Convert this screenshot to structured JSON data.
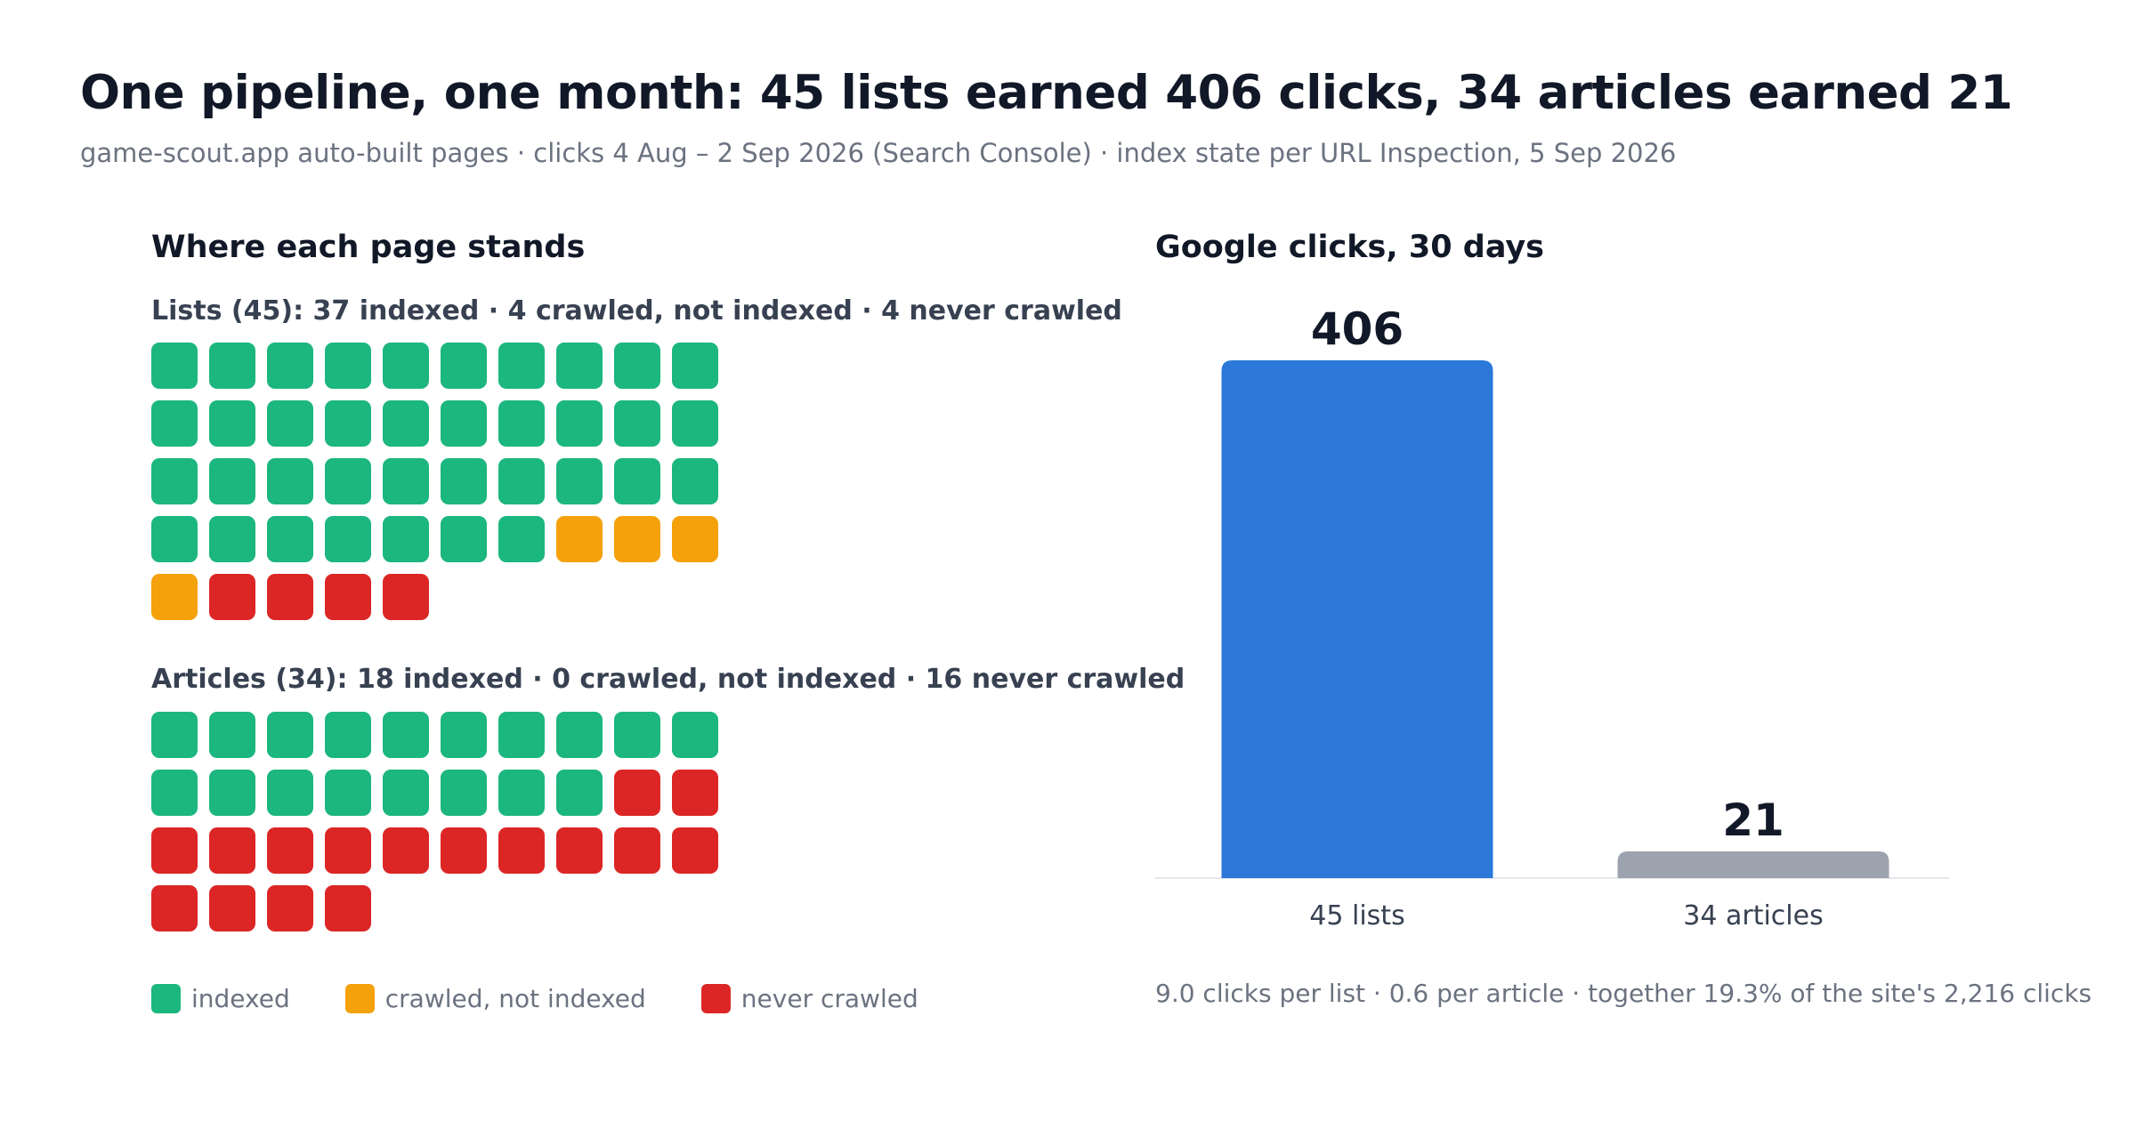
{
  "header": {
    "title": "One pipeline, one month: 45 lists earned 406 clicks, 34 articles earned 21",
    "subtitle": "game-scout.app auto-built pages · clicks 4 Aug – 2 Sep 2026 (Search Console) · index state per URL Inspection, 5 Sep 2026"
  },
  "left_panel": {
    "title": "Where each page stands",
    "groups": [
      {
        "label": "Lists (45): 37 indexed · 4 crawled, not indexed · 4 never crawled",
        "counts": {
          "indexed": 37,
          "crawled_not_indexed": 4,
          "never_crawled": 4
        }
      },
      {
        "label": "Articles (34): 18 indexed · 0 crawled, not indexed · 16 never crawled",
        "counts": {
          "indexed": 18,
          "crawled_not_indexed": 0,
          "never_crawled": 16
        }
      }
    ],
    "legend": [
      {
        "key": "indexed",
        "label": "indexed",
        "color": "#1cb67f"
      },
      {
        "key": "crawled_not_indexed",
        "label": "crawled, not indexed",
        "color": "#f5a10c"
      },
      {
        "key": "never_crawled",
        "label": "never crawled",
        "color": "#dc2626"
      }
    ]
  },
  "right_panel": {
    "title": "Google clicks, 30 days",
    "footnote": "9.0 clicks per list · 0.6 per article · together 19.3% of the site's 2,216 clicks"
  },
  "chart_data": [
    {
      "type": "waffle",
      "title": "Where each page stands",
      "groups": [
        {
          "name": "Lists",
          "total": 45,
          "indexed": 37,
          "crawled_not_indexed": 4,
          "never_crawled": 4
        },
        {
          "name": "Articles",
          "total": 34,
          "indexed": 18,
          "crawled_not_indexed": 0,
          "never_crawled": 16
        }
      ],
      "colors": {
        "indexed": "#1cb67f",
        "crawled_not_indexed": "#f5a10c",
        "never_crawled": "#dc2626"
      }
    },
    {
      "type": "bar",
      "title": "Google clicks, 30 days",
      "categories": [
        "45 lists",
        "34 articles"
      ],
      "values": [
        406,
        21
      ],
      "value_labels": [
        "406",
        "21"
      ],
      "colors": [
        "#2b78d8",
        "#9ca3af"
      ],
      "ylim": [
        0,
        406
      ],
      "grid": false
    }
  ]
}
